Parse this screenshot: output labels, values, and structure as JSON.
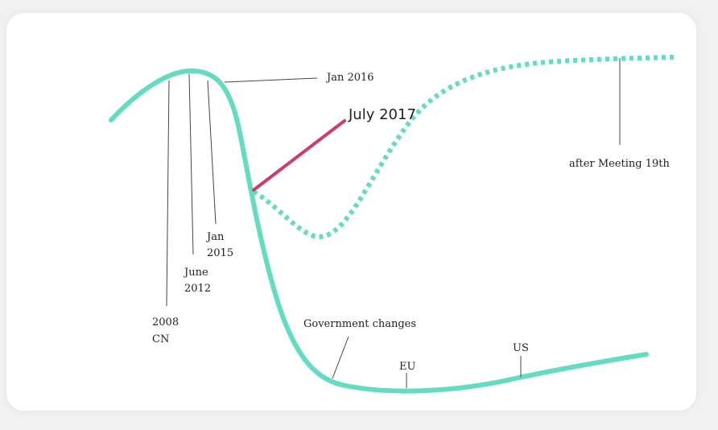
{
  "colors": {
    "main_curve": "#63dcc1",
    "accent": "#cf3a72",
    "leader": "#444444",
    "text": "#222222"
  },
  "labels": {
    "cn_year": "2008",
    "cn_country": "CN",
    "june": "June",
    "june_year": "2012",
    "jan_2015_month": "Jan",
    "jan_2015_year": "2015",
    "jan_2016": "Jan 2016",
    "july_2017": "July 2017",
    "after_meeting": "after Meeting 19th",
    "government_changes": "Government changes",
    "eu": "EU",
    "us": "US"
  }
}
